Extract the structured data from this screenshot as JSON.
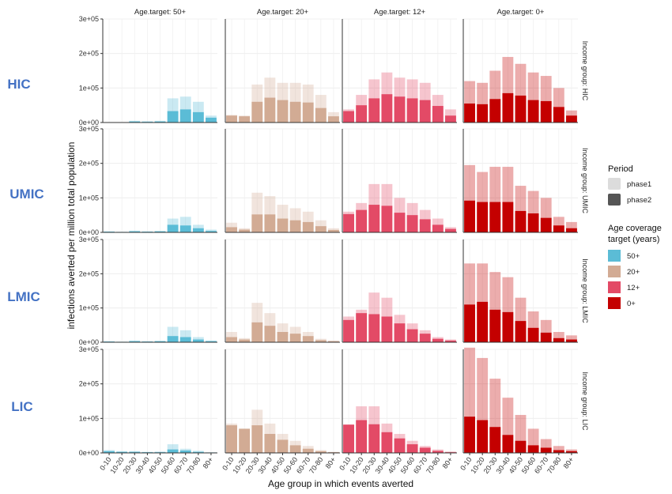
{
  "chart_data": {
    "type": "bar",
    "xlabel": "Age group in which events averted",
    "ylabel": "infections averted per million total population",
    "categories": [
      "0-10",
      "10-20",
      "20-30",
      "30-40",
      "40-50",
      "50-60",
      "60-70",
      "70-80",
      "80+"
    ],
    "ylim": [
      0,
      300000
    ],
    "yticks": [
      {
        "value": 0,
        "label": "0e+00"
      },
      {
        "value": 100000,
        "label": "1e+05"
      },
      {
        "value": 200000,
        "label": "2e+05"
      },
      {
        "value": 300000,
        "label": "3e+05"
      }
    ],
    "columns": [
      {
        "age_target": "50+",
        "strip": "Age.target: 50+",
        "color": "#5bbcd6"
      },
      {
        "age_target": "20+",
        "strip": "Age.target: 20+",
        "color": "#d2ab94"
      },
      {
        "age_target": "12+",
        "strip": "Age.target: 12+",
        "color": "#e34a66"
      },
      {
        "age_target": "0+",
        "strip": "Age.target: 0+",
        "color": "#c40000"
      }
    ],
    "rows": [
      {
        "income_group": "HIC",
        "strip": "Income group: HIC",
        "phase1": [
          [
            0,
            0,
            5000,
            4000,
            5000,
            70000,
            75000,
            60000,
            20000
          ],
          [
            22000,
            20000,
            110000,
            130000,
            115000,
            115000,
            110000,
            80000,
            30000
          ],
          [
            38000,
            80000,
            125000,
            145000,
            130000,
            125000,
            115000,
            80000,
            38000
          ],
          [
            120000,
            115000,
            150000,
            190000,
            170000,
            145000,
            135000,
            100000,
            35000
          ]
        ],
        "phase2": [
          [
            0,
            0,
            3000,
            2000,
            3000,
            33000,
            38000,
            30000,
            14000
          ],
          [
            20000,
            18000,
            60000,
            72000,
            65000,
            60000,
            58000,
            42000,
            18000
          ],
          [
            33000,
            50000,
            70000,
            82000,
            75000,
            70000,
            65000,
            48000,
            20000
          ],
          [
            55000,
            53000,
            68000,
            85000,
            78000,
            65000,
            62000,
            45000,
            20000
          ]
        ]
      },
      {
        "income_group": "UMIC",
        "strip": "Income group: UMIC",
        "phase1": [
          [
            3000,
            2000,
            5000,
            3000,
            4000,
            40000,
            45000,
            22000,
            8000
          ],
          [
            28000,
            12000,
            115000,
            105000,
            80000,
            70000,
            60000,
            35000,
            12000
          ],
          [
            60000,
            85000,
            140000,
            140000,
            100000,
            85000,
            65000,
            40000,
            15000
          ],
          [
            195000,
            175000,
            190000,
            190000,
            135000,
            120000,
            100000,
            45000,
            30000
          ]
        ],
        "phase2": [
          [
            2000,
            1000,
            3000,
            2000,
            3000,
            22000,
            20000,
            12000,
            4000
          ],
          [
            15000,
            8000,
            52000,
            52000,
            40000,
            35000,
            30000,
            18000,
            7000
          ],
          [
            53000,
            65000,
            80000,
            77000,
            57000,
            50000,
            38000,
            22000,
            10000
          ],
          [
            92000,
            88000,
            88000,
            88000,
            62000,
            55000,
            42000,
            20000,
            12000
          ]
        ]
      },
      {
        "income_group": "LMIC",
        "strip": "Income group: LMIC",
        "phase1": [
          [
            3000,
            2000,
            5000,
            3000,
            4000,
            45000,
            35000,
            15000,
            5000
          ],
          [
            30000,
            12000,
            115000,
            85000,
            55000,
            45000,
            30000,
            10000,
            5000
          ],
          [
            75000,
            95000,
            145000,
            130000,
            80000,
            55000,
            35000,
            15000,
            8000
          ],
          [
            230000,
            230000,
            205000,
            190000,
            130000,
            90000,
            65000,
            30000,
            20000
          ]
        ],
        "phase2": [
          [
            2000,
            1000,
            3000,
            2000,
            3000,
            18000,
            15000,
            8000,
            3000
          ],
          [
            15000,
            8000,
            58000,
            48000,
            30000,
            25000,
            18000,
            6000,
            3000
          ],
          [
            65000,
            85000,
            82000,
            75000,
            55000,
            38000,
            25000,
            10000,
            5000
          ],
          [
            110000,
            118000,
            95000,
            88000,
            62000,
            42000,
            28000,
            12000,
            8000
          ]
        ]
      },
      {
        "income_group": "LIC",
        "strip": "Income group: LIC",
        "phase1": [
          [
            8000,
            5000,
            5000,
            3000,
            4000,
            25000,
            12000,
            6000,
            2000
          ],
          [
            85000,
            70000,
            125000,
            85000,
            55000,
            35000,
            20000,
            8000,
            3000
          ],
          [
            80000,
            135000,
            135000,
            85000,
            55000,
            35000,
            20000,
            10000,
            4000
          ],
          [
            305000,
            275000,
            215000,
            160000,
            110000,
            70000,
            40000,
            20000,
            10000
          ]
        ],
        "phase2": [
          [
            5000,
            3000,
            3000,
            2000,
            2000,
            10000,
            7000,
            3000,
            1000
          ],
          [
            80000,
            70000,
            80000,
            55000,
            38000,
            22000,
            12000,
            5000,
            2000
          ],
          [
            82000,
            95000,
            83000,
            60000,
            42000,
            25000,
            15000,
            6000,
            2000
          ],
          [
            105000,
            95000,
            75000,
            52000,
            35000,
            22000,
            15000,
            8000,
            5000
          ]
        ]
      }
    ],
    "legend": {
      "placement": "right",
      "period_title": "Period",
      "period_items": [
        "phase1",
        "phase2"
      ],
      "age_title": "Age coverage target (years)",
      "age_items": [
        "50+",
        "20+",
        "12+",
        "0+"
      ]
    }
  }
}
